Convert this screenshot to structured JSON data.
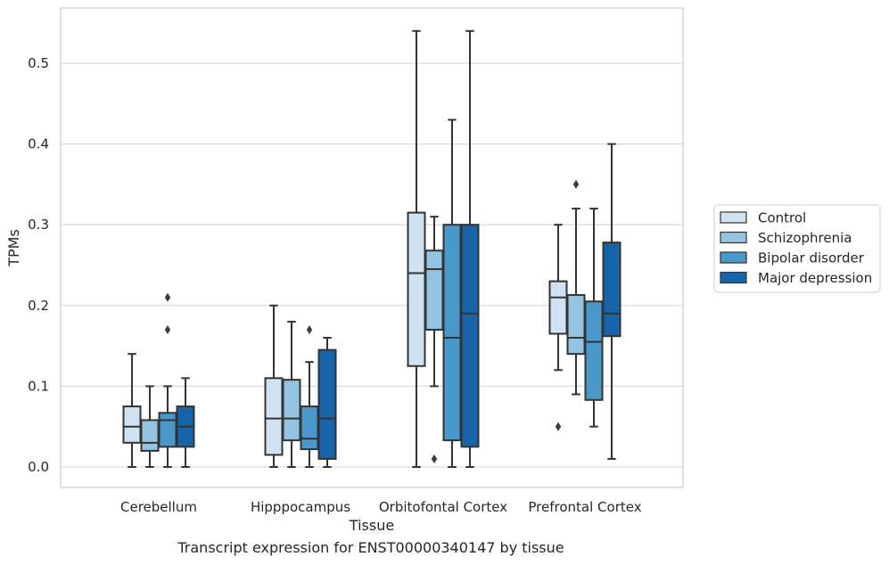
{
  "caption": "Transcript expression for ENST00000340147 by tissue",
  "chart_data": {
    "type": "boxplot",
    "xlabel": "Tissue",
    "ylabel": "TPMs",
    "ylim": [
      -0.025,
      0.57
    ],
    "yticks": [
      0.0,
      0.1,
      0.2,
      0.3,
      0.4,
      0.5
    ],
    "ytick_labels": [
      "0.0",
      "0.1",
      "0.2",
      "0.3",
      "0.4",
      "0.5"
    ],
    "grid": true,
    "legend_position": "right",
    "categories": [
      "Cerebellum",
      "Hipppocampus",
      "Orbitofontal Cortex",
      "Prefrontal Cortex"
    ],
    "series": [
      {
        "name": "Control",
        "color": "#d0e1f2",
        "boxes": [
          {
            "whislo": 0.0,
            "q1": 0.03,
            "med": 0.05,
            "q3": 0.075,
            "whishi": 0.14,
            "fliers": []
          },
          {
            "whislo": 0.0,
            "q1": 0.015,
            "med": 0.06,
            "q3": 0.11,
            "whishi": 0.2,
            "fliers": []
          },
          {
            "whislo": 0.0,
            "q1": 0.125,
            "med": 0.24,
            "q3": 0.315,
            "whishi": 0.54,
            "fliers": []
          },
          {
            "whislo": 0.12,
            "q1": 0.165,
            "med": 0.21,
            "q3": 0.23,
            "whishi": 0.3,
            "fliers": [
              0.05
            ]
          }
        ]
      },
      {
        "name": "Schizophrenia",
        "color": "#94c4df",
        "boxes": [
          {
            "whislo": 0.0,
            "q1": 0.02,
            "med": 0.03,
            "q3": 0.058,
            "whishi": 0.1,
            "fliers": []
          },
          {
            "whislo": 0.0,
            "q1": 0.033,
            "med": 0.06,
            "q3": 0.108,
            "whishi": 0.18,
            "fliers": []
          },
          {
            "whislo": 0.1,
            "q1": 0.17,
            "med": 0.245,
            "q3": 0.268,
            "whishi": 0.31,
            "fliers": [
              0.01
            ]
          },
          {
            "whislo": 0.09,
            "q1": 0.14,
            "med": 0.16,
            "q3": 0.213,
            "whishi": 0.32,
            "fliers": [
              0.35
            ]
          }
        ]
      },
      {
        "name": "Bipolar disorder",
        "color": "#4a98c9",
        "boxes": [
          {
            "whislo": 0.0,
            "q1": 0.025,
            "med": 0.058,
            "q3": 0.067,
            "whishi": 0.1,
            "fliers": [
              0.17,
              0.21
            ]
          },
          {
            "whislo": 0.0,
            "q1": 0.022,
            "med": 0.035,
            "q3": 0.075,
            "whishi": 0.13,
            "fliers": [
              0.17
            ]
          },
          {
            "whislo": 0.0,
            "q1": 0.033,
            "med": 0.16,
            "q3": 0.3,
            "whishi": 0.43,
            "fliers": []
          },
          {
            "whislo": 0.05,
            "q1": 0.083,
            "med": 0.155,
            "q3": 0.205,
            "whishi": 0.32,
            "fliers": []
          }
        ]
      },
      {
        "name": "Major depression",
        "color": "#1764ab",
        "boxes": [
          {
            "whislo": 0.0,
            "q1": 0.025,
            "med": 0.05,
            "q3": 0.075,
            "whishi": 0.11,
            "fliers": []
          },
          {
            "whislo": 0.0,
            "q1": 0.01,
            "med": 0.06,
            "q3": 0.145,
            "whishi": 0.16,
            "fliers": []
          },
          {
            "whislo": 0.0,
            "q1": 0.025,
            "med": 0.19,
            "q3": 0.3,
            "whishi": 0.54,
            "fliers": []
          },
          {
            "whislo": 0.01,
            "q1": 0.162,
            "med": 0.19,
            "q3": 0.278,
            "whishi": 0.4,
            "fliers": []
          }
        ]
      }
    ]
  }
}
